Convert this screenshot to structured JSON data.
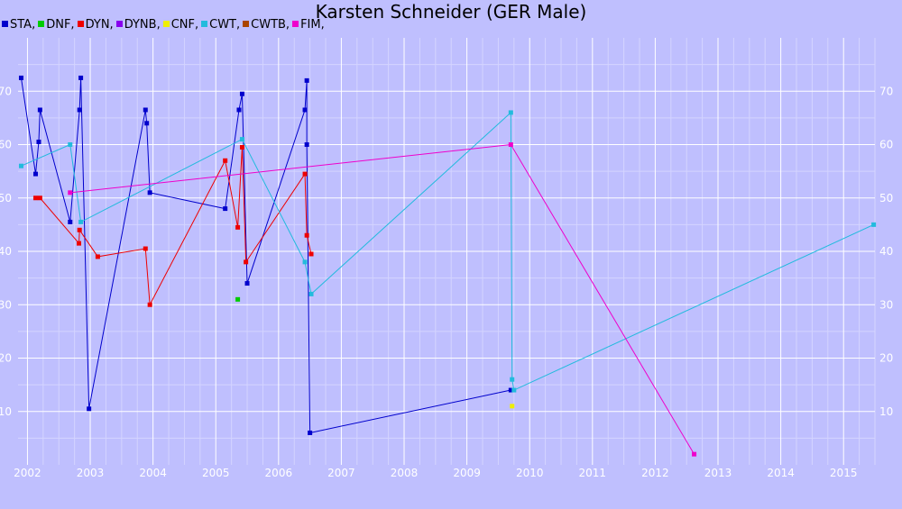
{
  "chart_data": {
    "type": "line",
    "title": "Karsten Schneider (GER Male)",
    "xlabel": "",
    "ylabel": "",
    "xlim": [
      2001.85,
      2015.5
    ],
    "ylim": [
      0,
      80
    ],
    "x_ticks": [
      2002,
      2003,
      2004,
      2005,
      2006,
      2007,
      2008,
      2009,
      2010,
      2011,
      2012,
      2013,
      2014,
      2015
    ],
    "y_ticks": [
      10,
      20,
      30,
      40,
      50,
      60,
      70
    ],
    "grid": true,
    "legend_position": "top-left",
    "series": [
      {
        "name": "STA",
        "color": "#0000cc",
        "points": [
          [
            2001.9,
            72.5
          ],
          [
            2002.13,
            54.5
          ],
          [
            2002.18,
            60.5
          ],
          [
            2002.2,
            66.5
          ],
          [
            2002.68,
            45.5
          ],
          [
            2002.83,
            66.5
          ],
          [
            2002.85,
            72.5
          ],
          [
            2002.98,
            10.5
          ],
          [
            2003.88,
            66.5
          ],
          [
            2003.9,
            64.0
          ],
          [
            2003.95,
            51.0
          ],
          [
            2005.15,
            48.0
          ],
          [
            2005.37,
            66.5
          ],
          [
            2005.42,
            69.5
          ],
          [
            2005.5,
            34.0
          ],
          [
            2006.42,
            66.5
          ],
          [
            2006.45,
            72.0
          ],
          [
            2006.45,
            60.0
          ],
          [
            2006.5,
            6.0
          ],
          [
            2009.7,
            14.0
          ]
        ]
      },
      {
        "name": "DNF",
        "color": "#00cc00",
        "points": [
          [
            2005.35,
            31.0
          ]
        ]
      },
      {
        "name": "DYN",
        "color": "#ee0000",
        "points": [
          [
            2002.13,
            50.0
          ],
          [
            2002.2,
            50.0
          ],
          [
            2002.82,
            41.5
          ],
          [
            2002.83,
            44.0
          ],
          [
            2003.12,
            39.0
          ],
          [
            2003.88,
            40.5
          ],
          [
            2003.95,
            30.0
          ],
          [
            2005.15,
            57.0
          ],
          [
            2005.35,
            44.5
          ],
          [
            2005.42,
            59.5
          ],
          [
            2005.48,
            38.0
          ],
          [
            2006.42,
            54.5
          ],
          [
            2006.45,
            43.0
          ],
          [
            2006.52,
            39.5
          ]
        ]
      },
      {
        "name": "DYNB",
        "color": "#8800ee",
        "points": []
      },
      {
        "name": "CNF",
        "color": "#eeee00",
        "points": [
          [
            2009.72,
            11.0
          ]
        ]
      },
      {
        "name": "CWT",
        "color": "#22bbdd",
        "points": [
          [
            2001.9,
            56.0
          ],
          [
            2002.68,
            60.0
          ],
          [
            2002.85,
            45.5
          ],
          [
            2005.42,
            61.0
          ],
          [
            2006.42,
            38.0
          ],
          [
            2006.52,
            32.0
          ],
          [
            2009.7,
            66.0
          ],
          [
            2009.72,
            16.0
          ],
          [
            2009.75,
            14.0
          ],
          [
            2015.48,
            45.0
          ]
        ]
      },
      {
        "name": "CWTB",
        "color": "#aa4400",
        "points": []
      },
      {
        "name": "FIM",
        "color": "#ee00cc",
        "points": [
          [
            2002.68,
            51.0
          ],
          [
            2009.7,
            60.0
          ],
          [
            2012.62,
            2.0
          ]
        ]
      }
    ]
  }
}
